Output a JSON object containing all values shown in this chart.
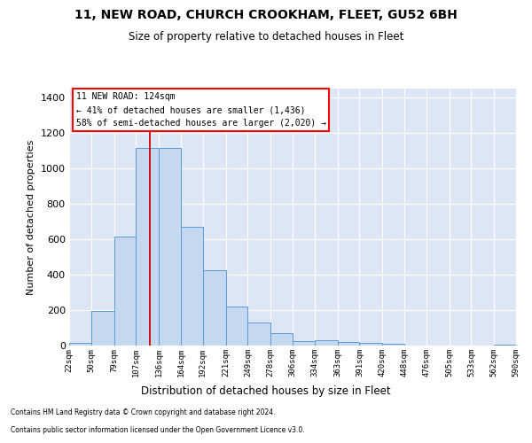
{
  "title": "11, NEW ROAD, CHURCH CROOKHAM, FLEET, GU52 6BH",
  "subtitle": "Size of property relative to detached houses in Fleet",
  "xlabel": "Distribution of detached houses by size in Fleet",
  "ylabel": "Number of detached properties",
  "footnote1": "Contains HM Land Registry data © Crown copyright and database right 2024.",
  "footnote2": "Contains public sector information licensed under the Open Government Licence v3.0.",
  "annotation_line1": "11 NEW ROAD: 124sqm",
  "annotation_line2": "← 41% of detached houses are smaller (1,436)",
  "annotation_line3": "58% of semi-detached houses are larger (2,020) →",
  "property_size": 124,
  "bar_color": "#c5d8f0",
  "bar_edge_color": "#5b9bd5",
  "marker_color": "#cc0000",
  "background_color": "#dce6f5",
  "bins": [
    22,
    50,
    79,
    107,
    136,
    164,
    192,
    221,
    249,
    278,
    306,
    334,
    363,
    391,
    420,
    448,
    476,
    505,
    533,
    562,
    590
  ],
  "values": [
    15,
    193,
    615,
    1113,
    1113,
    670,
    425,
    218,
    130,
    72,
    25,
    28,
    22,
    13,
    8,
    0,
    0,
    0,
    0,
    5
  ],
  "ylim": [
    0,
    1450
  ],
  "yticks": [
    0,
    200,
    400,
    600,
    800,
    1000,
    1200,
    1400
  ]
}
